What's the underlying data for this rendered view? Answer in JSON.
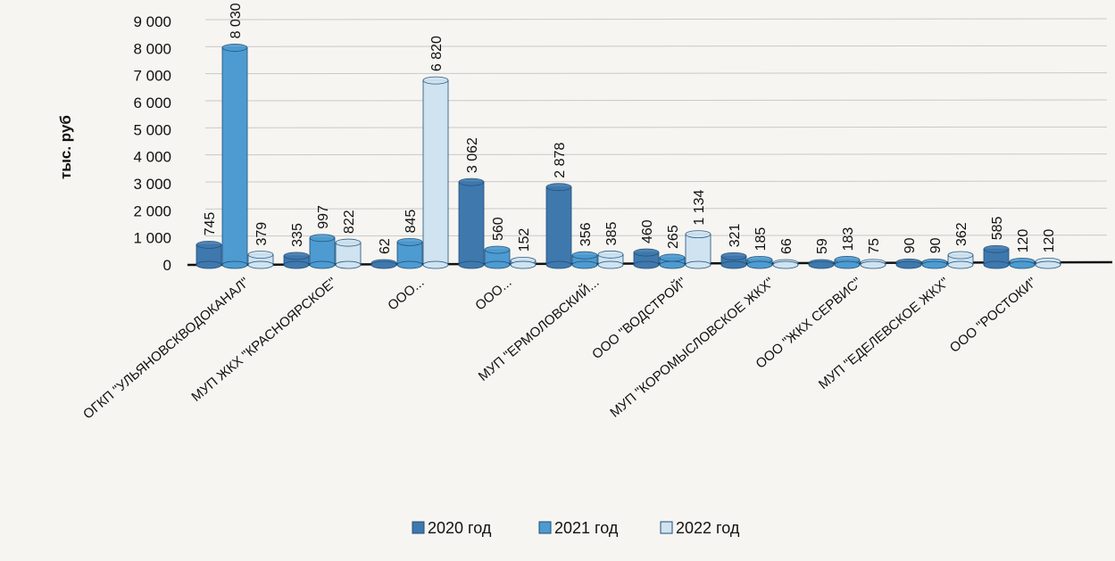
{
  "chart_data": {
    "type": "bar",
    "ylabel": "тыс. руб",
    "ylim": [
      0,
      9000
    ],
    "yticks": [
      0,
      1000,
      2000,
      3000,
      4000,
      5000,
      6000,
      7000,
      8000,
      9000
    ],
    "ytick_labels": [
      "0",
      "1 000",
      "2 000",
      "3 000",
      "4 000",
      "5 000",
      "6 000",
      "7 000",
      "8 000",
      "9 000"
    ],
    "grid": true,
    "legend_position": "bottom",
    "categories": [
      "ОГКП \"УЛЬЯНОВСКВОДОКАНАЛ\"",
      "МУП ЖКХ \"КРАСНОЯРСКОЕ\"",
      "ООО...",
      "ООО...",
      "МУП \"ЕРМОЛОВСКИЙ...",
      "ООО \"ВОДСТРОЙ\"",
      "МУП \"КОРОМЫСЛОВСКОЕ ЖКХ\"",
      "ООО \"ЖКХ СЕРВИС\"",
      "МУП \"ЕДЕЛЕВСКОЕ ЖКХ\"",
      "ООО \"РОСТОКИ\""
    ],
    "series": [
      {
        "name": "2020 год",
        "color": "#3f78ad",
        "values": [
          745,
          335,
          62,
          3062,
          2878,
          460,
          321,
          59,
          90,
          585
        ],
        "labels": [
          "745",
          "335",
          "62",
          "3 062",
          "2 878",
          "460",
          "321",
          "59",
          "90",
          "585"
        ]
      },
      {
        "name": "2021 год",
        "color": "#4d9bd0",
        "values": [
          8030,
          997,
          845,
          560,
          356,
          265,
          185,
          183,
          90,
          120
        ],
        "labels": [
          "8 030",
          "997",
          "845",
          "560",
          "356",
          "265",
          "185",
          "183",
          "90",
          "120"
        ]
      },
      {
        "name": "2022 год",
        "color": "#cfe3f1",
        "values": [
          379,
          822,
          6820,
          152,
          385,
          1134,
          66,
          75,
          362,
          120
        ],
        "labels": [
          "379",
          "822",
          "6 820",
          "152",
          "385",
          "1 134",
          "66",
          "75",
          "362",
          "120"
        ]
      }
    ]
  }
}
